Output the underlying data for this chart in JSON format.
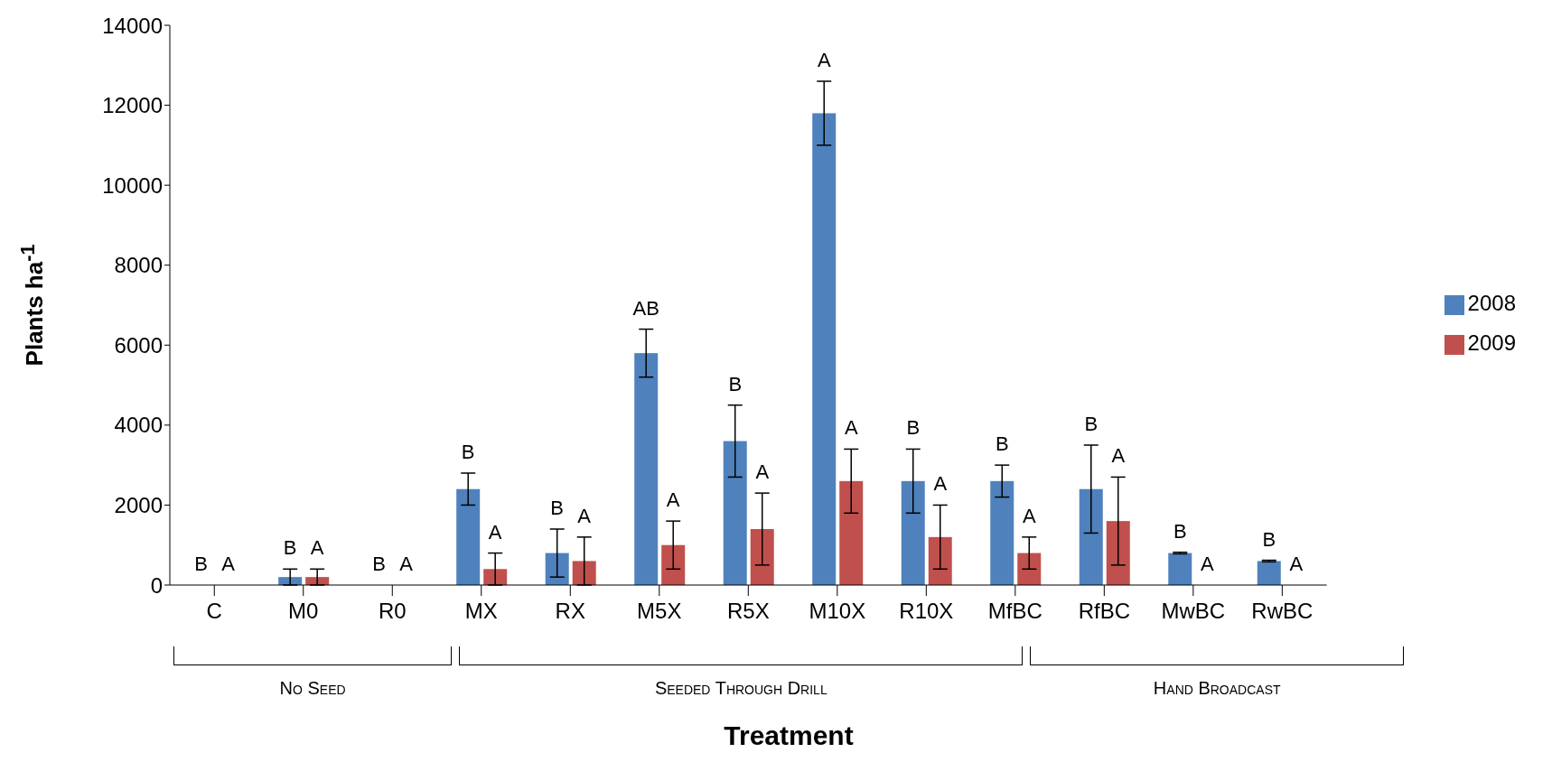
{
  "chart_data": {
    "type": "bar",
    "xlabel": "Treatment",
    "ylabel": "Plants ha$^{-1}$",
    "categories": [
      "C",
      "M0",
      "R0",
      "MX",
      "RX",
      "M5X",
      "R5X",
      "M10X",
      "R10X",
      "MfBC",
      "RfBC",
      "MwBC",
      "RwBC"
    ],
    "series": [
      {
        "name": "2008",
        "color": "#4f81bd",
        "values": [
          0,
          200,
          0,
          2400,
          800,
          5800,
          3600,
          11800,
          2600,
          2600,
          2400,
          800,
          600
        ],
        "errors": [
          null,
          200,
          null,
          400,
          600,
          600,
          900,
          800,
          800,
          400,
          1100,
          20,
          20
        ],
        "value_labels": [
          "B",
          "B",
          "B",
          "B",
          "B",
          "AB",
          "B",
          "A",
          "B",
          "B",
          "B",
          "B",
          "B"
        ]
      },
      {
        "name": "2009",
        "color": "#c0504d",
        "values": [
          0,
          200,
          0,
          400,
          600,
          1000,
          1400,
          2600,
          1200,
          800,
          1600,
          0,
          0
        ],
        "errors": [
          null,
          200,
          null,
          400,
          600,
          600,
          900,
          800,
          800,
          400,
          1100,
          null,
          null
        ],
        "value_labels": [
          "A",
          "A",
          "A",
          "A",
          "A",
          "A",
          "A",
          "A",
          "A",
          "A",
          "A",
          "A",
          "A"
        ]
      }
    ],
    "ylim": [
      0,
      14000
    ],
    "yticks": [
      0,
      2000,
      4000,
      6000,
      8000,
      10000,
      12000,
      14000
    ],
    "grid": false,
    "legend": "right",
    "annotations": [
      "No Seed",
      "Seeded Through Drill",
      "Hand Broadcast"
    ]
  }
}
